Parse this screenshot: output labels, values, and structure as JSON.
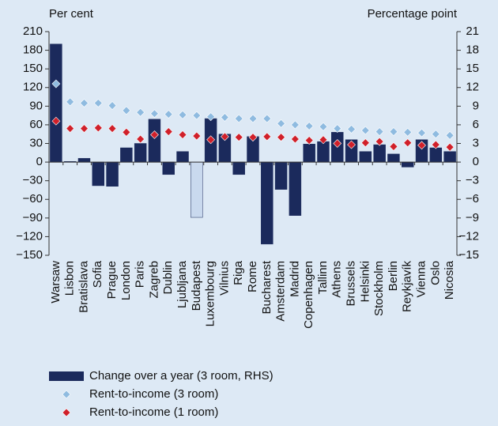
{
  "chart_data": {
    "type": "bar",
    "ylabel": "Per cent",
    "y2label": "Percentage point",
    "categories": [
      "Warsaw",
      "Lisbon",
      "Bratislava",
      "Sofia",
      "Prague",
      "London",
      "Paris",
      "Zagreb",
      "Dublin",
      "Ljubljana",
      "Budapest",
      "Luxembourg",
      "Vilnius",
      "Riga",
      "Rome",
      "Bucharest",
      "Amsterdam",
      "Madrid",
      "Copenhagen",
      "Tallinn",
      "Athens",
      "Brussels",
      "Helsinki",
      "Stockholm",
      "Berlin",
      "Reykjavík",
      "Vienna",
      "Oslo",
      "Nicosia"
    ],
    "series": [
      {
        "name": "Change over a year (3 room, RHS)",
        "type": "bar",
        "axis": "y2",
        "color": "#1b2a5c",
        "colors": [
          "#1b2a5c",
          "#1b2a5c",
          "#1b2a5c",
          "#1b2a5c",
          "#1b2a5c",
          "#1b2a5c",
          "#1b2a5c",
          "#1b2a5c",
          "#1b2a5c",
          "#1b2a5c",
          "#c9d9ee",
          "#1b2a5c",
          "#1b2a5c",
          "#1b2a5c",
          "#1b2a5c",
          "#1b2a5c",
          "#1b2a5c",
          "#1b2a5c",
          "#1b2a5c",
          "#1b2a5c",
          "#1b2a5c",
          "#1b2a5c",
          "#1b2a5c",
          "#1b2a5c",
          "#1b2a5c",
          "#1b2a5c",
          "#1b2a5c",
          "#1b2a5c",
          "#1b2a5c"
        ],
        "values": [
          19,
          0.1,
          0.6,
          -3.8,
          -3.9,
          2.3,
          3.0,
          6.9,
          -2.0,
          1.7,
          -8.9,
          7.0,
          4.5,
          -2.0,
          4.1,
          -13.2,
          -4.4,
          -8.6,
          2.9,
          3.3,
          4.8,
          3.6,
          1.7,
          2.8,
          1.3,
          -0.8,
          3.6,
          2.3,
          1.7
        ]
      },
      {
        "name": "Rent-to-income (3 room)",
        "type": "scatter",
        "color": "#8fbbe0",
        "values": [
          126,
          97,
          95,
          95,
          91,
          83,
          80,
          78,
          77,
          76,
          75,
          73,
          72,
          70,
          70,
          70,
          62,
          60,
          58,
          57,
          54,
          53,
          51,
          49,
          49,
          48,
          47,
          45,
          43
        ]
      },
      {
        "name": "Rent-to-income (1 room)",
        "type": "scatter",
        "color": "#d0202a",
        "values": [
          66,
          54,
          54,
          55,
          54,
          48,
          37,
          44,
          49,
          44,
          42,
          36,
          41,
          40,
          40,
          41,
          40,
          37,
          35,
          36,
          30,
          28,
          31,
          33,
          25,
          31,
          27,
          28,
          24
        ]
      }
    ],
    "ylim": [
      -150,
      210
    ],
    "yticks": [
      210,
      180,
      150,
      120,
      90,
      60,
      30,
      0,
      {
        "value": -30,
        "label": "−30"
      },
      {
        "value": -60,
        "label": "−60"
      },
      {
        "value": -90,
        "label": "−90"
      },
      {
        "value": -120,
        "label": "−120"
      },
      {
        "value": -150,
        "label": "−150"
      }
    ],
    "y2lim": [
      -15,
      21
    ],
    "y2ticks": [
      21,
      18,
      15,
      12,
      9,
      6,
      3,
      0,
      {
        "value": -3,
        "label": "−3"
      },
      {
        "value": -6,
        "label": "−6"
      },
      {
        "value": -9,
        "label": "−9"
      },
      {
        "value": -12,
        "label": "−12"
      },
      {
        "value": -15,
        "label": "−15"
      }
    ]
  }
}
